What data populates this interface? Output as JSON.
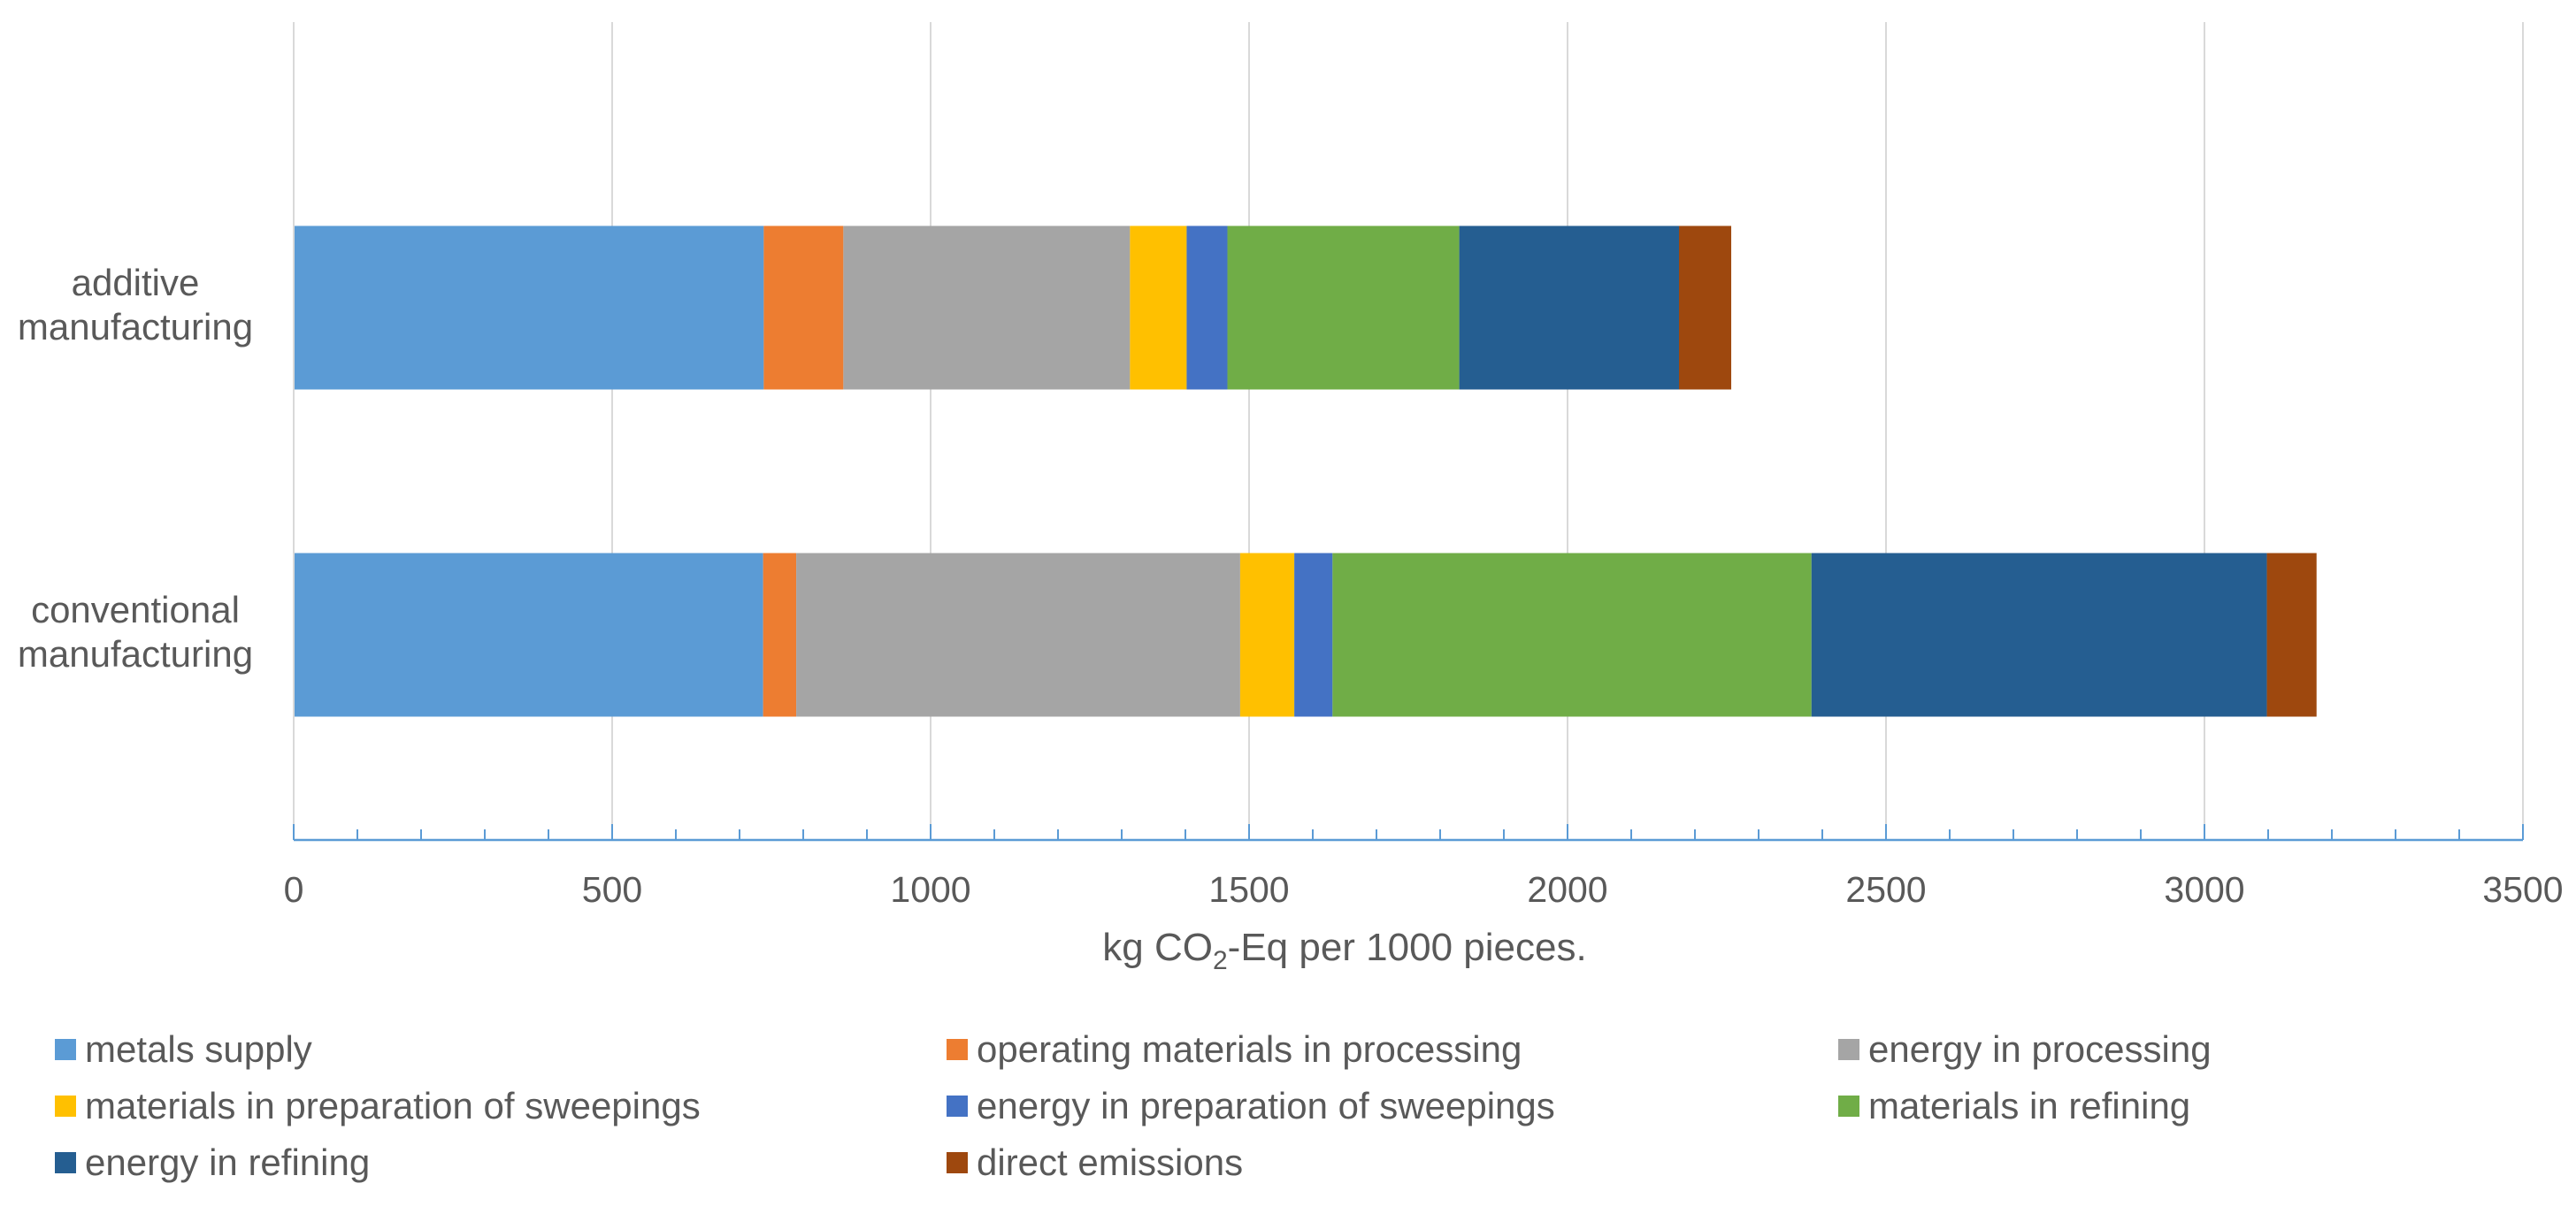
{
  "chart_data": {
    "type": "bar",
    "orientation": "horizontal",
    "stacked": true,
    "title": "",
    "xlabel_parts": [
      "kg CO",
      "2",
      "-Eq per 1000 pieces."
    ],
    "ylabel": "",
    "xlim": [
      0,
      3500
    ],
    "x_ticks": [
      "0",
      "500",
      "1000",
      "1500",
      "2000",
      "2500",
      "3000",
      "3500"
    ],
    "grid": true,
    "legend_position": "bottom",
    "categories": [
      [
        "additive",
        "manufacturing"
      ],
      [
        "conventional",
        "manufacturing"
      ]
    ],
    "series": [
      {
        "name": "metals supply",
        "color": "#5B9BD5",
        "values": [
          738,
          737
        ]
      },
      {
        "name": "operating materials in processing",
        "color": "#ED7D31",
        "values": [
          125,
          52
        ]
      },
      {
        "name": "energy in processing",
        "color": "#A5A5A5",
        "values": [
          450,
          697
        ]
      },
      {
        "name": "materials in preparation of sweepings",
        "color": "#FFC000",
        "values": [
          89,
          85
        ]
      },
      {
        "name": "energy in preparation of sweepings",
        "color": "#4472C4",
        "values": [
          64,
          60
        ]
      },
      {
        "name": "materials in refining",
        "color": "#70AD47",
        "values": [
          364,
          752
        ]
      },
      {
        "name": "energy in refining",
        "color": "#255E91",
        "values": [
          345,
          715
        ]
      },
      {
        "name": "direct emissions",
        "color": "#9E480E",
        "values": [
          82,
          78
        ]
      }
    ]
  }
}
